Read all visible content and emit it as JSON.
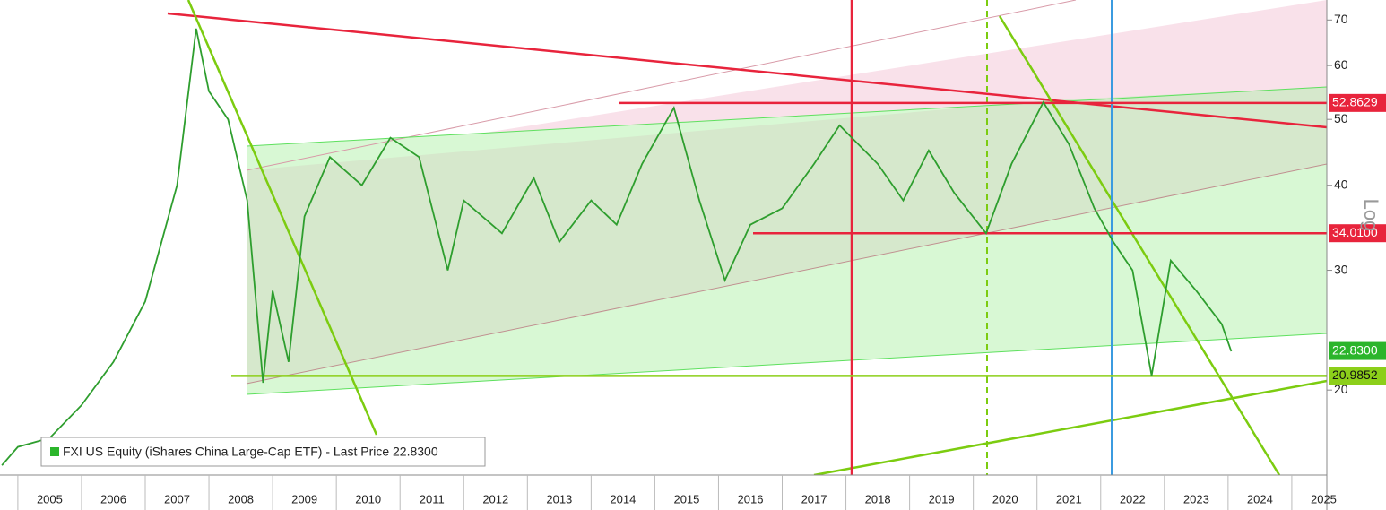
{
  "chart_data": {
    "type": "line",
    "y_axis_label": "Log",
    "legend": "FXI US Equity (iShares China Large-Cap ETF) - Last Price 22.8300",
    "log_scale": true,
    "xlim": [
      2004.72,
      2025.55
    ],
    "xticks": [
      2005,
      2006,
      2007,
      2008,
      2009,
      2010,
      2011,
      2012,
      2013,
      2014,
      2015,
      2016,
      2017,
      2018,
      2019,
      2020,
      2021,
      2022,
      2023,
      2024,
      2025
    ],
    "ylim": [
      15,
      74.9
    ],
    "yticks": [
      20,
      30,
      40,
      50,
      60,
      70
    ],
    "series": [
      {
        "name": "FXI US Equity",
        "color": "#2e9e2e",
        "x": [
          2004.75,
          2005.0,
          2005.5,
          2006.0,
          2006.5,
          2007.0,
          2007.5,
          2007.8,
          2008.0,
          2008.3,
          2008.6,
          2008.85,
          2009.0,
          2009.25,
          2009.5,
          2009.9,
          2010.4,
          2010.85,
          2011.3,
          2011.75,
          2012.0,
          2012.6,
          2013.1,
          2013.5,
          2014.0,
          2014.4,
          2014.8,
          2015.3,
          2015.7,
          2016.1,
          2016.5,
          2017.0,
          2017.5,
          2017.9,
          2018.5,
          2018.9,
          2019.3,
          2019.7,
          2020.2,
          2020.6,
          2021.1,
          2021.5,
          2021.9,
          2022.2,
          2022.5,
          2022.8,
          2023.1,
          2023.5,
          2023.9,
          2024.05
        ],
        "values": [
          15.5,
          16.5,
          17,
          19,
          22,
          27,
          40,
          68,
          55,
          50,
          38,
          20.5,
          28,
          22,
          36,
          44,
          40,
          47,
          44,
          30,
          38,
          34,
          41,
          33,
          38,
          35,
          43,
          52,
          38,
          29,
          35,
          37,
          43,
          49,
          43,
          38,
          45,
          39,
          34,
          43,
          53,
          46,
          37,
          33,
          30,
          21,
          31,
          28,
          25,
          22.8
        ]
      }
    ],
    "levels": [
      {
        "value": 52.8629,
        "color": "#e8243c"
      },
      {
        "value": 34.01,
        "label": "34.0100",
        "color": "#e8243c"
      },
      {
        "value": 22.83,
        "label": "22.8300",
        "color": "#2bb52b"
      },
      {
        "value": 20.9852,
        "color": "#8ccf1a"
      }
    ]
  }
}
